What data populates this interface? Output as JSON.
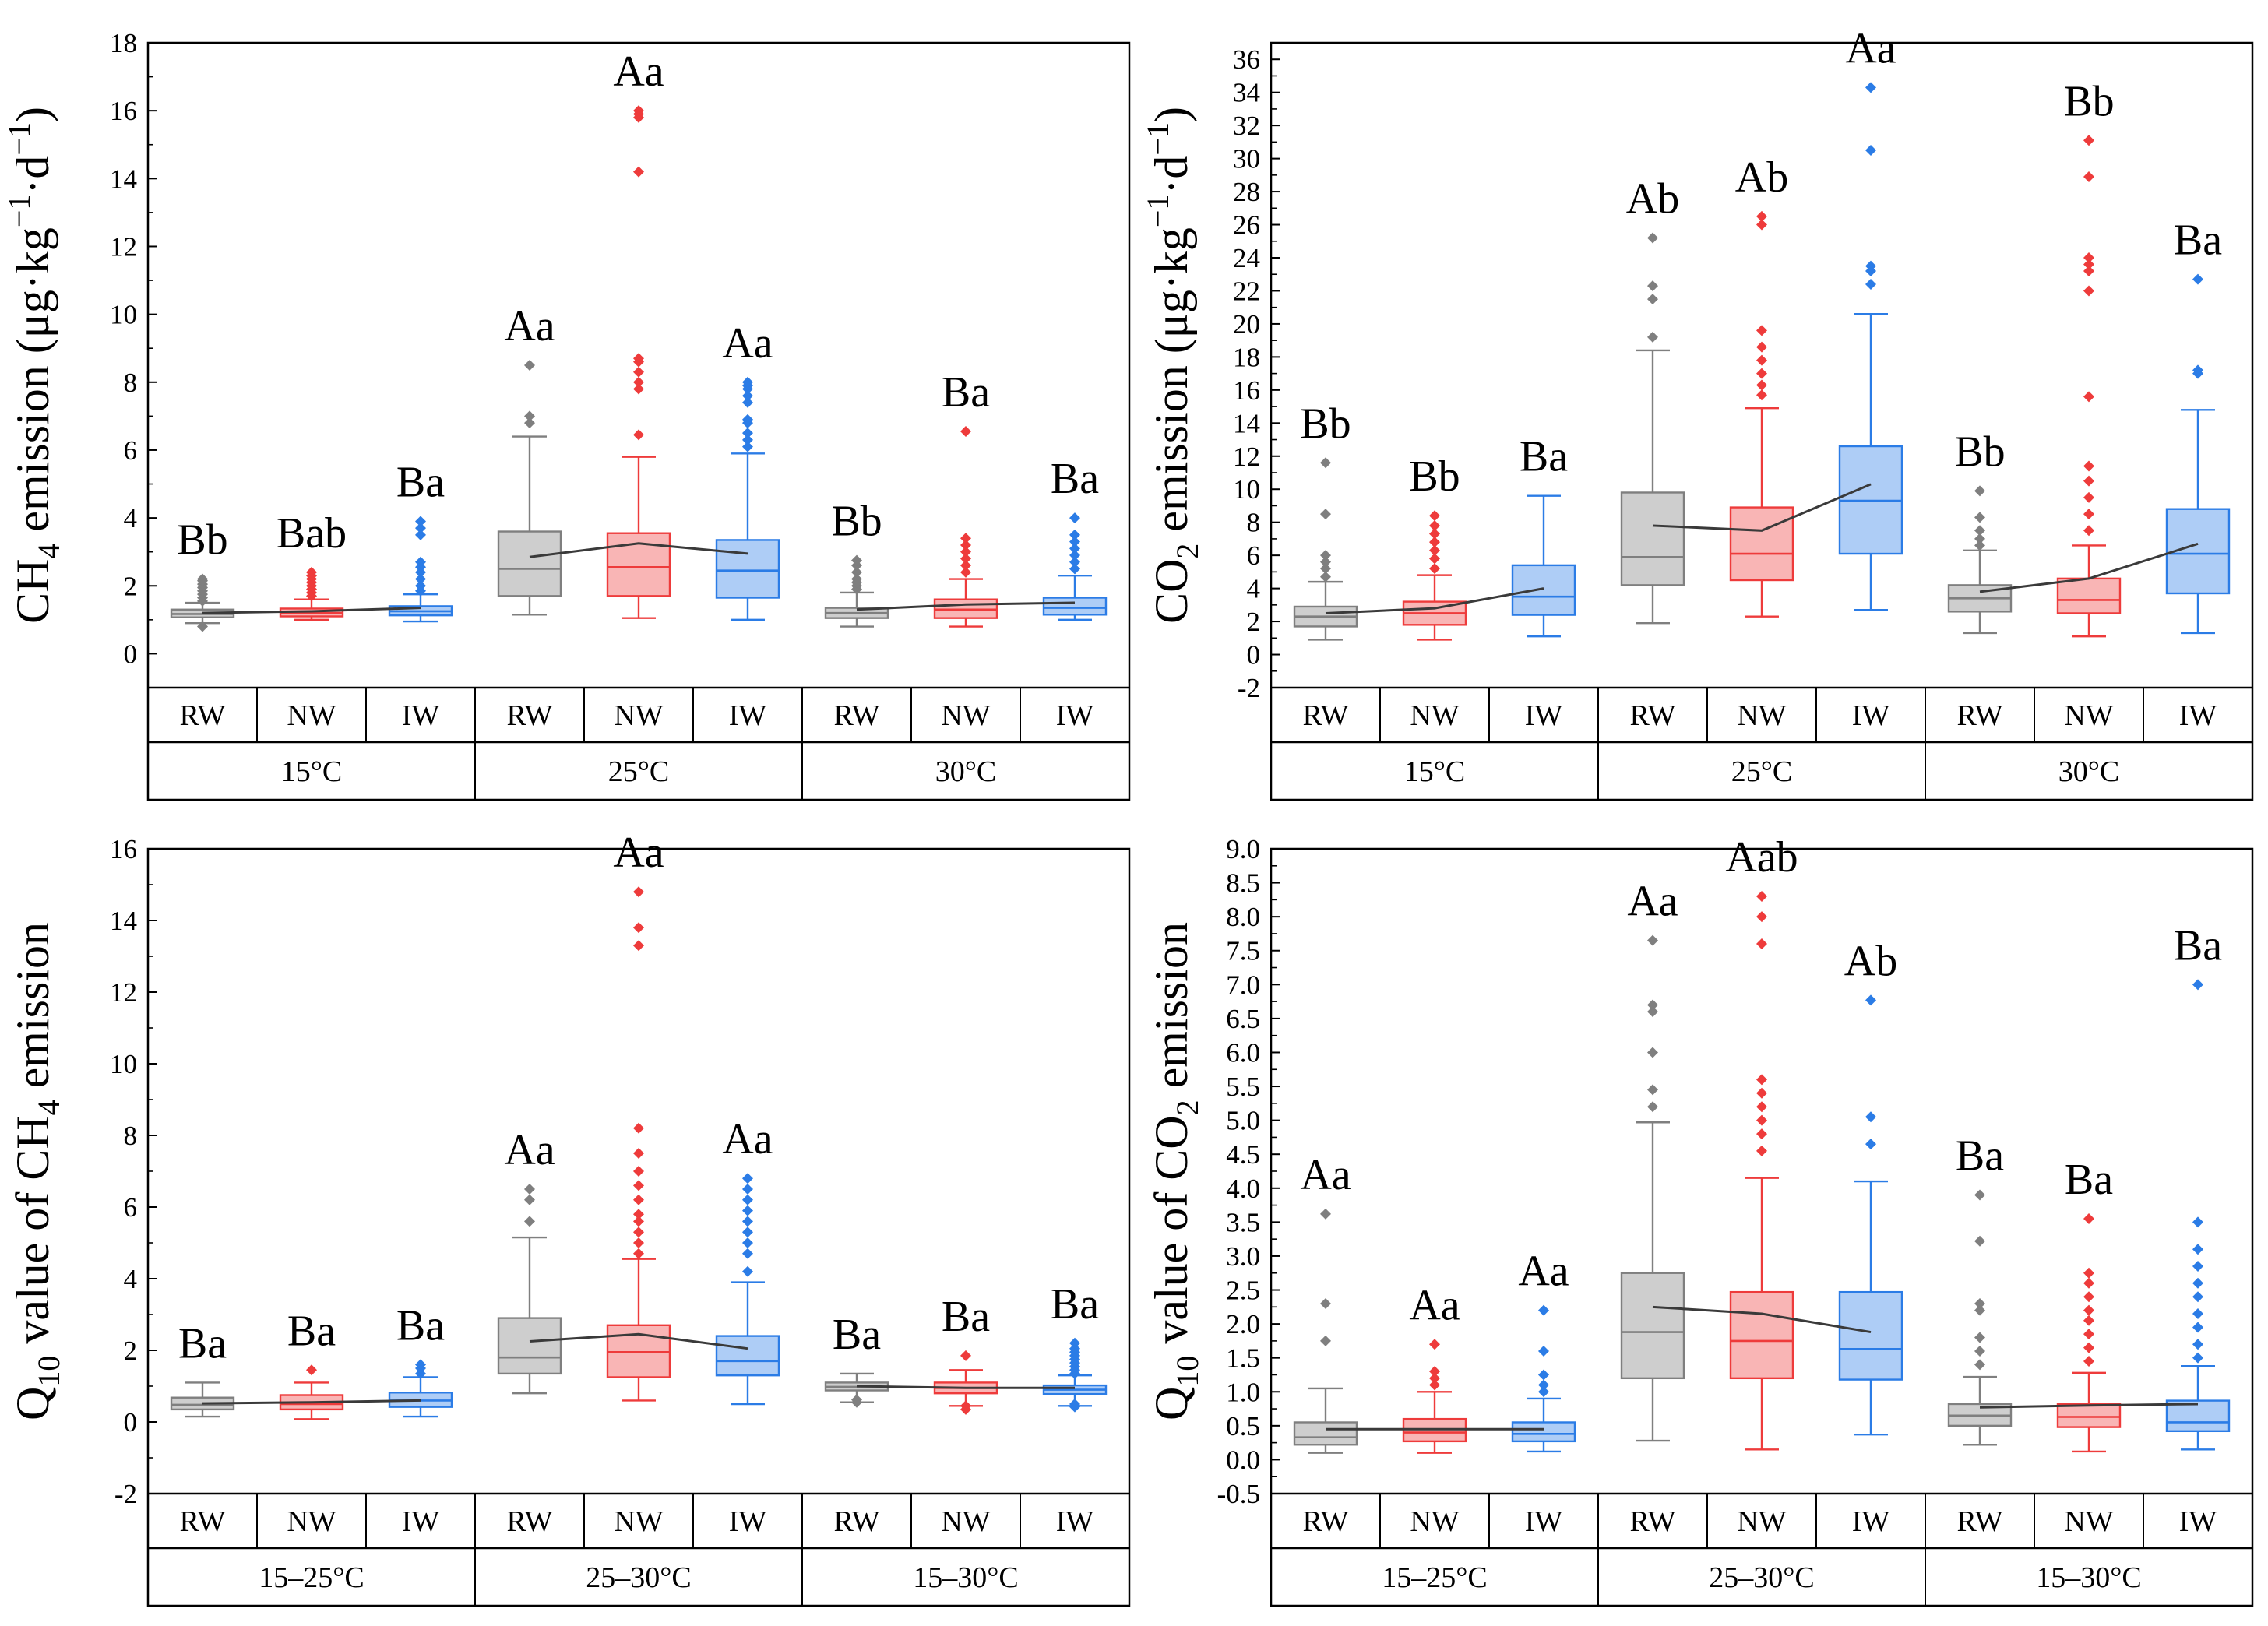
{
  "colors": {
    "RW": "#7f7f7f",
    "NW": "#ee3b3b",
    "IW": "#2b7ce6",
    "mean_line": "#3a3a3a",
    "axis": "#000000"
  },
  "chart_data": [
    {
      "id": "ch4-emission",
      "type": "box",
      "ylabel": {
        "pre": "CH",
        "sub": "4",
        "post": " emission (μg·kg",
        "sup1": "−1",
        "mid": "·d",
        "sup2": "−1",
        "end": ")"
      },
      "ylim": [
        -1,
        18
      ],
      "yticks": [
        0,
        2,
        4,
        6,
        8,
        10,
        12,
        14,
        16,
        18
      ],
      "yminor": 1,
      "categories": [
        "RW",
        "NW",
        "IW"
      ],
      "groups": [
        "15°C",
        "25°C",
        "30°C"
      ],
      "boxes": [
        {
          "group": 0,
          "cat": "RW",
          "min": 0.9,
          "q1": 1.07,
          "med": 1.17,
          "q3": 1.3,
          "max": 1.5,
          "mean": 1.2,
          "outliers": [
            0.8,
            1.55,
            1.65,
            1.75,
            1.85,
            1.95,
            2.05,
            2.15,
            2.2
          ],
          "letter": "Bb"
        },
        {
          "group": 0,
          "cat": "NW",
          "min": 1.0,
          "q1": 1.1,
          "med": 1.2,
          "q3": 1.33,
          "max": 1.6,
          "mean": 1.25,
          "outliers": [
            1.7,
            1.8,
            1.9,
            2.0,
            2.1,
            2.2,
            2.3,
            2.4
          ],
          "letter": "Bab"
        },
        {
          "group": 0,
          "cat": "IW",
          "min": 0.95,
          "q1": 1.13,
          "med": 1.25,
          "q3": 1.4,
          "max": 1.75,
          "mean": 1.35,
          "outliers": [
            1.85,
            2.0,
            2.2,
            2.4,
            2.55,
            2.7,
            3.5,
            3.7,
            3.9
          ],
          "letter": "Ba"
        },
        {
          "group": 1,
          "cat": "RW",
          "min": 1.15,
          "q1": 1.7,
          "med": 2.5,
          "q3": 3.6,
          "max": 6.4,
          "mean": 2.85,
          "outliers": [
            6.8,
            7.0,
            8.5
          ],
          "letter": "Aa"
        },
        {
          "group": 1,
          "cat": "NW",
          "min": 1.05,
          "q1": 1.7,
          "med": 2.55,
          "q3": 3.55,
          "max": 5.8,
          "mean": 3.25,
          "outliers": [
            6.45,
            7.8,
            8.0,
            8.3,
            8.6,
            8.7,
            14.2,
            15.8,
            15.9,
            16.0
          ],
          "letter": "Aa"
        },
        {
          "group": 1,
          "cat": "IW",
          "min": 1.0,
          "q1": 1.65,
          "med": 2.45,
          "q3": 3.35,
          "max": 5.9,
          "mean": 2.95,
          "outliers": [
            6.1,
            6.3,
            6.5,
            6.8,
            6.9,
            7.4,
            7.6,
            7.8,
            7.9,
            8.0
          ],
          "letter": "Aa"
        },
        {
          "group": 2,
          "cat": "RW",
          "min": 0.8,
          "q1": 1.05,
          "med": 1.2,
          "q3": 1.35,
          "max": 1.8,
          "mean": 1.3,
          "outliers": [
            1.9,
            2.0,
            2.1,
            2.2,
            2.4,
            2.6,
            2.75
          ],
          "letter": "Bb"
        },
        {
          "group": 2,
          "cat": "NW",
          "min": 0.8,
          "q1": 1.05,
          "med": 1.3,
          "q3": 1.6,
          "max": 2.2,
          "mean": 1.45,
          "outliers": [
            2.4,
            2.6,
            2.8,
            3.0,
            3.2,
            3.4,
            6.55
          ],
          "letter": "Ba"
        },
        {
          "group": 2,
          "cat": "IW",
          "min": 1.0,
          "q1": 1.15,
          "med": 1.35,
          "q3": 1.65,
          "max": 2.3,
          "mean": 1.5,
          "outliers": [
            2.5,
            2.7,
            2.9,
            3.1,
            3.3,
            3.5,
            4.0
          ],
          "letter": "Ba"
        }
      ]
    },
    {
      "id": "co2-emission",
      "type": "box",
      "ylabel": {
        "pre": "CO",
        "sub": "2",
        "post": " emission (μg·kg",
        "sup1": "−1",
        "mid": "·d",
        "sup2": "−1",
        "end": ")"
      },
      "ylim": [
        -2,
        37
      ],
      "yticks": [
        -2,
        0,
        2,
        4,
        6,
        8,
        10,
        12,
        14,
        16,
        18,
        20,
        22,
        24,
        26,
        28,
        30,
        32,
        34,
        36
      ],
      "yminor": 1,
      "categories": [
        "RW",
        "NW",
        "IW"
      ],
      "groups": [
        "15°C",
        "25°C",
        "30°C"
      ],
      "boxes": [
        {
          "group": 0,
          "cat": "RW",
          "min": 0.9,
          "q1": 1.7,
          "med": 2.3,
          "q3": 2.9,
          "max": 4.4,
          "mean": 2.5,
          "outliers": [
            4.7,
            5.2,
            5.6,
            6.0,
            8.5,
            11.6
          ],
          "letter": "Bb"
        },
        {
          "group": 0,
          "cat": "NW",
          "min": 0.9,
          "q1": 1.8,
          "med": 2.5,
          "q3": 3.2,
          "max": 4.8,
          "mean": 2.8,
          "outliers": [
            5.2,
            5.8,
            6.3,
            6.8,
            7.3,
            7.8,
            8.4
          ],
          "letter": "Bb"
        },
        {
          "group": 0,
          "cat": "IW",
          "min": 1.1,
          "q1": 2.4,
          "med": 3.5,
          "q3": 5.4,
          "max": 9.6,
          "mean": 4.0,
          "outliers": [],
          "letter": "Ba"
        },
        {
          "group": 1,
          "cat": "RW",
          "min": 1.9,
          "q1": 4.2,
          "med": 5.9,
          "q3": 9.8,
          "max": 18.4,
          "mean": 7.8,
          "outliers": [
            19.2,
            21.5,
            22.3,
            25.2
          ],
          "letter": "Ab"
        },
        {
          "group": 1,
          "cat": "NW",
          "min": 2.3,
          "q1": 4.5,
          "med": 6.1,
          "q3": 8.9,
          "max": 14.9,
          "mean": 7.5,
          "outliers": [
            15.7,
            16.3,
            17.0,
            17.8,
            18.6,
            19.6,
            26.0,
            26.5
          ],
          "letter": "Ab"
        },
        {
          "group": 1,
          "cat": "IW",
          "min": 2.7,
          "q1": 6.1,
          "med": 9.3,
          "q3": 12.6,
          "max": 20.6,
          "mean": 10.3,
          "outliers": [
            22.4,
            23.2,
            23.5,
            30.5,
            34.3
          ],
          "letter": "Aa"
        },
        {
          "group": 2,
          "cat": "RW",
          "min": 1.3,
          "q1": 2.6,
          "med": 3.4,
          "q3": 4.2,
          "max": 6.3,
          "mean": 3.8,
          "outliers": [
            6.6,
            7.0,
            7.5,
            8.3,
            9.9
          ],
          "letter": "Bb"
        },
        {
          "group": 2,
          "cat": "NW",
          "min": 1.1,
          "q1": 2.5,
          "med": 3.3,
          "q3": 4.6,
          "max": 6.6,
          "mean": 4.6,
          "outliers": [
            7.5,
            8.5,
            9.5,
            10.5,
            11.4,
            15.6,
            22.0,
            23.2,
            23.6,
            24.0,
            28.9,
            31.1
          ],
          "letter": "Bb"
        },
        {
          "group": 2,
          "cat": "IW",
          "min": 1.3,
          "q1": 3.7,
          "med": 6.1,
          "q3": 8.8,
          "max": 14.8,
          "mean": 6.7,
          "outliers": [
            17.0,
            17.2,
            22.7
          ],
          "letter": "Ba"
        }
      ]
    },
    {
      "id": "q10-ch4",
      "type": "box",
      "ylabel": {
        "pre": "Q",
        "sub": "10",
        "post": " value of CH",
        "sub2": "4",
        "end": " emission"
      },
      "ylim": [
        -2,
        16
      ],
      "yticks": [
        -2,
        0,
        2,
        4,
        6,
        8,
        10,
        12,
        14,
        16
      ],
      "yminor": 1,
      "categories": [
        "RW",
        "NW",
        "IW"
      ],
      "groups": [
        "15–25°C",
        "25–30°C",
        "15–30°C"
      ],
      "boxes": [
        {
          "group": 0,
          "cat": "RW",
          "min": 0.15,
          "q1": 0.35,
          "med": 0.48,
          "q3": 0.68,
          "max": 1.1,
          "mean": 0.52,
          "outliers": [],
          "letter": "Ba"
        },
        {
          "group": 0,
          "cat": "NW",
          "min": 0.08,
          "q1": 0.35,
          "med": 0.5,
          "q3": 0.75,
          "max": 1.1,
          "mean": 0.55,
          "outliers": [
            1.45
          ],
          "letter": "Ba"
        },
        {
          "group": 0,
          "cat": "IW",
          "min": 0.15,
          "q1": 0.42,
          "med": 0.6,
          "q3": 0.82,
          "max": 1.25,
          "mean": 0.6,
          "outliers": [
            1.35,
            1.5,
            1.6
          ],
          "letter": "Ba"
        },
        {
          "group": 1,
          "cat": "RW",
          "min": 0.8,
          "q1": 1.35,
          "med": 1.8,
          "q3": 2.9,
          "max": 5.15,
          "mean": 2.25,
          "outliers": [
            5.6,
            6.2,
            6.5
          ],
          "letter": "Aa"
        },
        {
          "group": 1,
          "cat": "NW",
          "min": 0.6,
          "q1": 1.25,
          "med": 1.95,
          "q3": 2.7,
          "max": 4.55,
          "mean": 2.45,
          "outliers": [
            4.7,
            5.0,
            5.3,
            5.6,
            5.8,
            6.2,
            6.6,
            7.0,
            7.5,
            8.2,
            13.3,
            13.8,
            14.8
          ],
          "letter": "Aa"
        },
        {
          "group": 1,
          "cat": "IW",
          "min": 0.5,
          "q1": 1.3,
          "med": 1.7,
          "q3": 2.4,
          "max": 3.9,
          "mean": 2.05,
          "outliers": [
            4.2,
            4.7,
            5.0,
            5.3,
            5.6,
            5.9,
            6.2,
            6.5,
            6.8
          ],
          "letter": "Aa"
        },
        {
          "group": 2,
          "cat": "RW",
          "min": 0.55,
          "q1": 0.88,
          "med": 0.98,
          "q3": 1.1,
          "max": 1.35,
          "mean": 1.0,
          "outliers": [
            0.55,
            0.62
          ],
          "letter": "Ba"
        },
        {
          "group": 2,
          "cat": "NW",
          "min": 0.45,
          "q1": 0.8,
          "med": 0.95,
          "q3": 1.1,
          "max": 1.45,
          "mean": 0.95,
          "outliers": [
            0.35,
            0.45,
            1.85
          ],
          "letter": "Ba"
        },
        {
          "group": 2,
          "cat": "IW",
          "min": 0.45,
          "q1": 0.78,
          "med": 0.9,
          "q3": 1.02,
          "max": 1.3,
          "mean": 0.95,
          "outliers": [
            0.42,
            0.5,
            1.35,
            1.45,
            1.55,
            1.65,
            1.75,
            1.85,
            1.95,
            2.05,
            2.2
          ],
          "letter": "Ba"
        }
      ]
    },
    {
      "id": "q10-co2",
      "type": "box",
      "ylabel": {
        "pre": "Q",
        "sub": "10",
        "post": " value of CO",
        "sub2": "2",
        "end": " emission"
      },
      "ylim": [
        -0.5,
        9.0
      ],
      "yticks": [
        -0.5,
        0.0,
        0.5,
        1.0,
        1.5,
        2.0,
        2.5,
        3.0,
        3.5,
        4.0,
        4.5,
        5.0,
        5.5,
        6.0,
        6.5,
        7.0,
        7.5,
        8.0,
        8.5,
        9.0
      ],
      "ytick_decimals": 1,
      "yminor": 0.25,
      "categories": [
        "RW",
        "NW",
        "IW"
      ],
      "groups": [
        "15–25°C",
        "25–30°C",
        "15–30°C"
      ],
      "boxes": [
        {
          "group": 0,
          "cat": "RW",
          "min": 0.1,
          "q1": 0.22,
          "med": 0.33,
          "q3": 0.55,
          "max": 1.05,
          "mean": 0.45,
          "outliers": [
            1.75,
            2.3,
            3.62
          ],
          "letter": "Aa"
        },
        {
          "group": 0,
          "cat": "NW",
          "min": 0.1,
          "q1": 0.27,
          "med": 0.4,
          "q3": 0.6,
          "max": 1.0,
          "mean": 0.45,
          "outliers": [
            1.1,
            1.2,
            1.3,
            1.7
          ],
          "letter": "Aa"
        },
        {
          "group": 0,
          "cat": "IW",
          "min": 0.12,
          "q1": 0.27,
          "med": 0.38,
          "q3": 0.55,
          "max": 0.9,
          "mean": 0.45,
          "outliers": [
            1.0,
            1.1,
            1.25,
            1.6,
            2.2
          ],
          "letter": "Aa"
        },
        {
          "group": 1,
          "cat": "RW",
          "min": 0.28,
          "q1": 1.2,
          "med": 1.88,
          "q3": 2.75,
          "max": 4.97,
          "mean": 2.25,
          "outliers": [
            5.2,
            5.45,
            6.0,
            6.6,
            6.7,
            7.65
          ],
          "letter": "Aa"
        },
        {
          "group": 1,
          "cat": "NW",
          "min": 0.15,
          "q1": 1.2,
          "med": 1.75,
          "q3": 2.47,
          "max": 4.15,
          "mean": 2.15,
          "outliers": [
            4.55,
            4.8,
            5.0,
            5.2,
            5.4,
            5.6,
            7.6,
            8.0,
            8.3
          ],
          "letter": "Aab"
        },
        {
          "group": 1,
          "cat": "IW",
          "min": 0.37,
          "q1": 1.18,
          "med": 1.63,
          "q3": 2.47,
          "max": 4.1,
          "mean": 1.88,
          "outliers": [
            4.65,
            5.05,
            6.77
          ],
          "letter": "Ab"
        },
        {
          "group": 2,
          "cat": "RW",
          "min": 0.22,
          "q1": 0.5,
          "med": 0.65,
          "q3": 0.82,
          "max": 1.22,
          "mean": 0.77,
          "outliers": [
            1.4,
            1.6,
            1.8,
            2.2,
            2.3,
            3.22,
            3.9
          ],
          "letter": "Ba"
        },
        {
          "group": 2,
          "cat": "NW",
          "min": 0.12,
          "q1": 0.48,
          "med": 0.63,
          "q3": 0.82,
          "max": 1.28,
          "mean": 0.8,
          "outliers": [
            1.45,
            1.65,
            1.85,
            2.05,
            2.2,
            2.4,
            2.6,
            2.75,
            3.55
          ],
          "letter": "Ba"
        },
        {
          "group": 2,
          "cat": "IW",
          "min": 0.15,
          "q1": 0.42,
          "med": 0.55,
          "q3": 0.87,
          "max": 1.38,
          "mean": 0.82,
          "outliers": [
            1.5,
            1.7,
            1.95,
            2.15,
            2.4,
            2.6,
            2.85,
            3.1,
            3.5,
            7.0
          ],
          "letter": "Ba"
        }
      ]
    }
  ]
}
